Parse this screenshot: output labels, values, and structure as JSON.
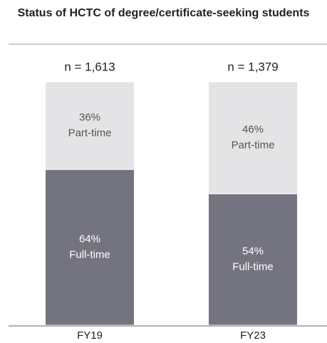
{
  "chart_data": {
    "type": "stacked_bar",
    "title": "Status of HCTC of degree/certificate-seeking students",
    "categories": [
      "FY19",
      "FY23"
    ],
    "annotations": [
      "n = 1,613",
      "n = 1,379"
    ],
    "series": [
      {
        "name": "Full-time",
        "color": "#747480",
        "values": [
          64,
          54
        ],
        "value_labels": [
          "64%",
          "54%"
        ]
      },
      {
        "name": "Part-time",
        "color": "#e4e4e6",
        "values": [
          36,
          46
        ],
        "value_labels": [
          "36%",
          "46%"
        ]
      }
    ],
    "ylim": [
      0,
      100
    ]
  }
}
